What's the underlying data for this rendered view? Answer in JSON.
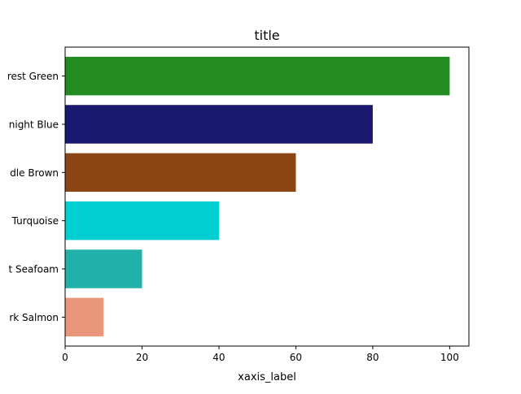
{
  "chart_data": {
    "type": "bar",
    "orientation": "horizontal",
    "title": "title",
    "xlabel": "xaxis_label",
    "ylabel": "",
    "categories": [
      "Dark Salmon",
      "Light Seafoam",
      "Turquoise",
      "Saddle Brown",
      "Midnight Blue",
      "Forest Green"
    ],
    "visible_tick_labels": [
      "rk Salmon",
      "t Seafoam",
      "Turquoise",
      "dle Brown",
      "night Blue",
      "rest Green"
    ],
    "values": [
      10,
      20,
      40,
      60,
      80,
      100
    ],
    "colors": [
      "#E9967A",
      "#20B2AA",
      "#00CED1",
      "#8B4513",
      "#191970",
      "#228B22"
    ],
    "xlim": [
      0,
      105
    ],
    "xticks": [
      0,
      20,
      40,
      60,
      80,
      100
    ],
    "grid": false,
    "legend": "none"
  }
}
